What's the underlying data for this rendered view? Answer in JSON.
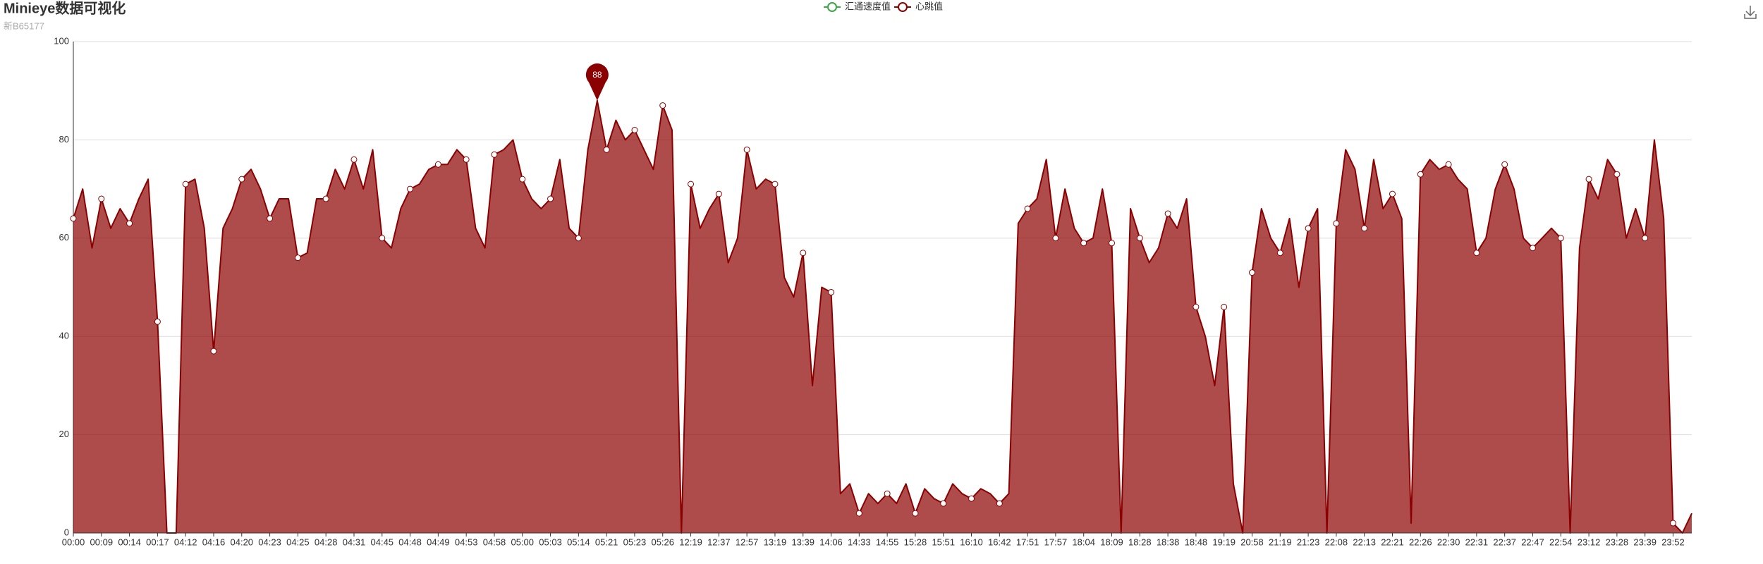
{
  "chart_data": {
    "type": "area",
    "title": "Minieye数据可视化",
    "subtitle": "新B65177",
    "categories": [
      "00:00",
      null,
      null,
      "00:09",
      null,
      null,
      "00:14",
      null,
      null,
      "00:17",
      null,
      null,
      "04:12",
      null,
      null,
      "04:16",
      null,
      null,
      "04:20",
      null,
      null,
      "04:23",
      null,
      null,
      "04:25",
      null,
      null,
      "04:28",
      null,
      null,
      "04:31",
      null,
      null,
      "04:45",
      null,
      null,
      "04:48",
      null,
      null,
      "04:49",
      null,
      null,
      "04:53",
      null,
      null,
      "04:58",
      null,
      null,
      "05:00",
      null,
      null,
      "05:03",
      null,
      null,
      "05:14",
      null,
      null,
      "05:21",
      null,
      null,
      "05:23",
      null,
      null,
      "05:26",
      null,
      null,
      "12:19",
      null,
      null,
      "12:37",
      null,
      null,
      "12:57",
      null,
      null,
      "13:19",
      null,
      null,
      "13:39",
      null,
      null,
      "14:06",
      null,
      null,
      "14:33",
      null,
      null,
      "14:55",
      null,
      null,
      "15:28",
      null,
      null,
      "15:51",
      null,
      null,
      "16:10",
      null,
      null,
      "16:42",
      null,
      null,
      "17:51",
      null,
      null,
      "17:57",
      null,
      null,
      "18:04",
      null,
      null,
      "18:09",
      null,
      null,
      "18:28",
      null,
      null,
      "18:38",
      null,
      null,
      "18:48",
      null,
      null,
      "19:19",
      null,
      null,
      "20:58",
      null,
      null,
      "21:19",
      null,
      null,
      "21:23",
      null,
      null,
      "22:08",
      null,
      null,
      "22:13",
      null,
      null,
      "22:21",
      null,
      null,
      "22:26",
      null,
      null,
      "22:30",
      null,
      null,
      "22:31",
      null,
      null,
      "22:37",
      null,
      null,
      "22:47",
      null,
      null,
      "22:54",
      null,
      null,
      "23:12",
      null,
      null,
      "23:28",
      null,
      null,
      "23:39",
      null,
      null,
      "23:52",
      null,
      null
    ],
    "series": [
      {
        "name": "汇通速度值",
        "color": "#3aa845"
      },
      {
        "name": "心跳值",
        "color": "#8b0000",
        "values": [
          64,
          70,
          58,
          68,
          62,
          66,
          63,
          68,
          72,
          43,
          0,
          0,
          71,
          72,
          62,
          37,
          62,
          66,
          72,
          74,
          70,
          64,
          68,
          68,
          56,
          57,
          68,
          68,
          74,
          70,
          76,
          70,
          78,
          60,
          58,
          66,
          70,
          71,
          74,
          75,
          75,
          78,
          76,
          62,
          58,
          77,
          78,
          80,
          72,
          68,
          66,
          68,
          76,
          62,
          60,
          78,
          88,
          78,
          84,
          80,
          82,
          78,
          74,
          87,
          82,
          0,
          71,
          62,
          66,
          69,
          55,
          60,
          78,
          70,
          72,
          71,
          52,
          48,
          57,
          30,
          50,
          49,
          8,
          10,
          4,
          8,
          6,
          8,
          6,
          10,
          4,
          9,
          7,
          6,
          10,
          8,
          7,
          9,
          8,
          6,
          8,
          63,
          66,
          68,
          76,
          60,
          70,
          62,
          59,
          60,
          70,
          59,
          0,
          66,
          60,
          55,
          58,
          65,
          62,
          68,
          46,
          40,
          30,
          46,
          10,
          0,
          53,
          66,
          60,
          57,
          64,
          50,
          62,
          66,
          0,
          63,
          78,
          74,
          62,
          76,
          66,
          69,
          64,
          2,
          73,
          76,
          74,
          75,
          72,
          70,
          57,
          60,
          70,
          75,
          70,
          60,
          58,
          60,
          62,
          60,
          0,
          58,
          72,
          68,
          76,
          73,
          60,
          66,
          60,
          80,
          64,
          2,
          0,
          4
        ]
      }
    ],
    "ylim": [
      0,
      100
    ],
    "yticks": [
      0,
      20,
      40,
      60,
      80,
      100
    ],
    "grid": true
  }
}
